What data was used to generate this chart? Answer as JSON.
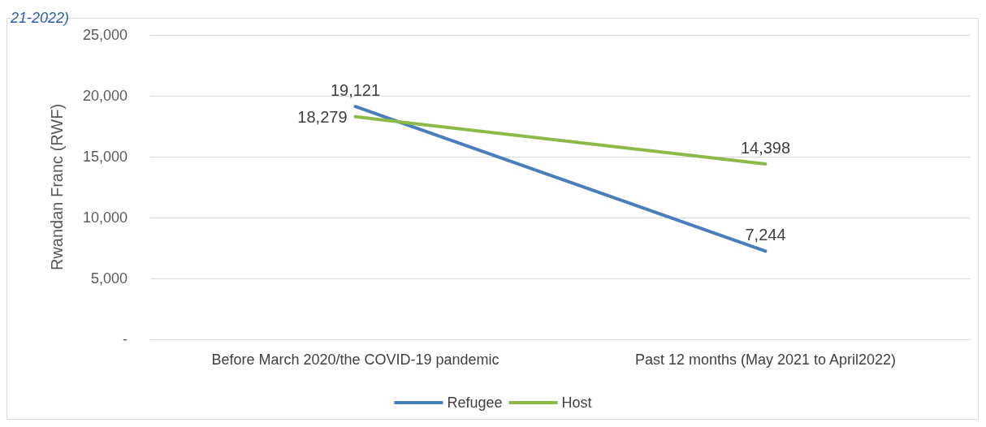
{
  "chart_data": {
    "type": "line",
    "title": "21-2022)",
    "ylabel": "Rwandan Franc (RWF)",
    "categories": [
      "Before March 2020/the COVID-19 pandemic",
      "Past 12 months (May 2021 to April2022)"
    ],
    "series": [
      {
        "name": "Refugee",
        "color": "#4a7ebb",
        "values": [
          19121,
          7244
        ],
        "value_labels": [
          "19,121",
          "7,244"
        ]
      },
      {
        "name": "Host",
        "color": "#8db84a",
        "values": [
          18279,
          14398
        ],
        "value_labels": [
          "18,279",
          "14,398"
        ]
      }
    ],
    "ylim": [
      0,
      25000
    ],
    "yticks": [
      {
        "value": 0,
        "label": "-"
      },
      {
        "value": 5000,
        "label": "5,000"
      },
      {
        "value": 10000,
        "label": "10,000"
      },
      {
        "value": 15000,
        "label": "15,000"
      },
      {
        "value": 20000,
        "label": "20,000"
      },
      {
        "value": 25000,
        "label": "25,000"
      }
    ],
    "grid": "y",
    "legend": "bottom",
    "marker": "none",
    "line_style": "solid"
  }
}
